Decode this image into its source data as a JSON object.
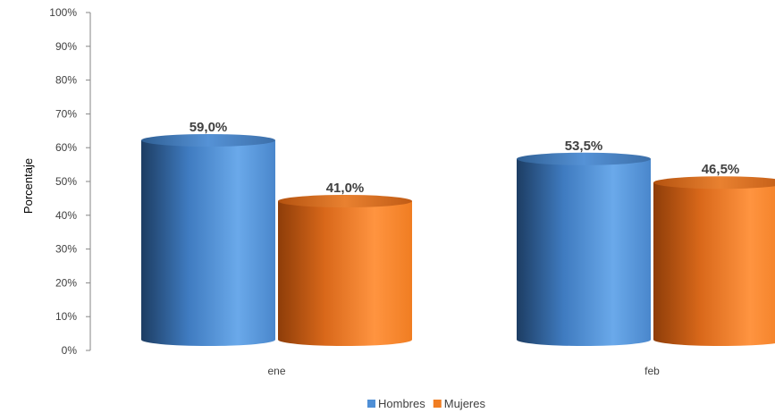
{
  "chart_data": {
    "type": "bar",
    "style": "3d-cylinder",
    "title": "",
    "xlabel": "",
    "ylabel": "Porcentaje",
    "ylim": [
      0,
      100
    ],
    "ytick_labels": [
      "0%",
      "10%",
      "20%",
      "30%",
      "40%",
      "50%",
      "60%",
      "70%",
      "80%",
      "90%",
      "100%"
    ],
    "categories": [
      "ene",
      "feb"
    ],
    "series": [
      {
        "name": "Hombres",
        "values": [
          59.0,
          53.5
        ],
        "labels": [
          "59,0%",
          "53,5%"
        ],
        "color": "#4f8fd6"
      },
      {
        "name": "Mujeres",
        "values": [
          41.0,
          46.5
        ],
        "labels": [
          "41,0%",
          "46,5%"
        ],
        "color": "#f07d22"
      }
    ],
    "legend_position": "bottom",
    "grid": false
  }
}
